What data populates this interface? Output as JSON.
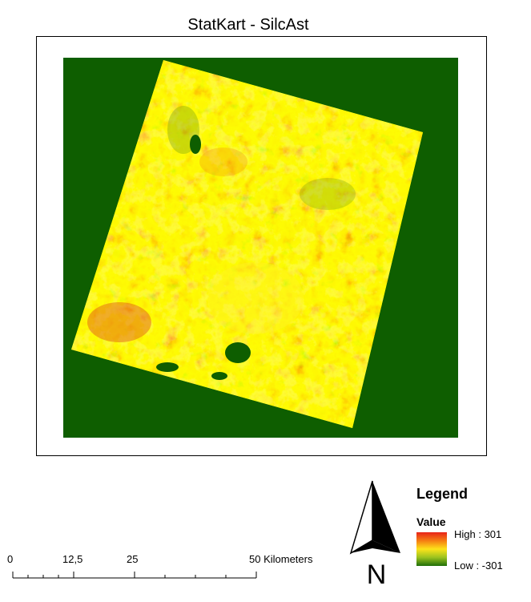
{
  "title": "StatKart - SilcAst",
  "legend": {
    "heading": "Legend",
    "field": "Value",
    "high_label": "High : 301",
    "low_label": "Low : -301"
  },
  "north_arrow": {
    "letter": "N"
  },
  "scale_bar": {
    "ticks": [
      "0",
      "12,5",
      "25",
      "50 Kilometers"
    ]
  },
  "colors": {
    "background_green": "#0e5e00",
    "high": "#e8231a",
    "mid": "#fde31a",
    "low": "#1f6e08"
  }
}
